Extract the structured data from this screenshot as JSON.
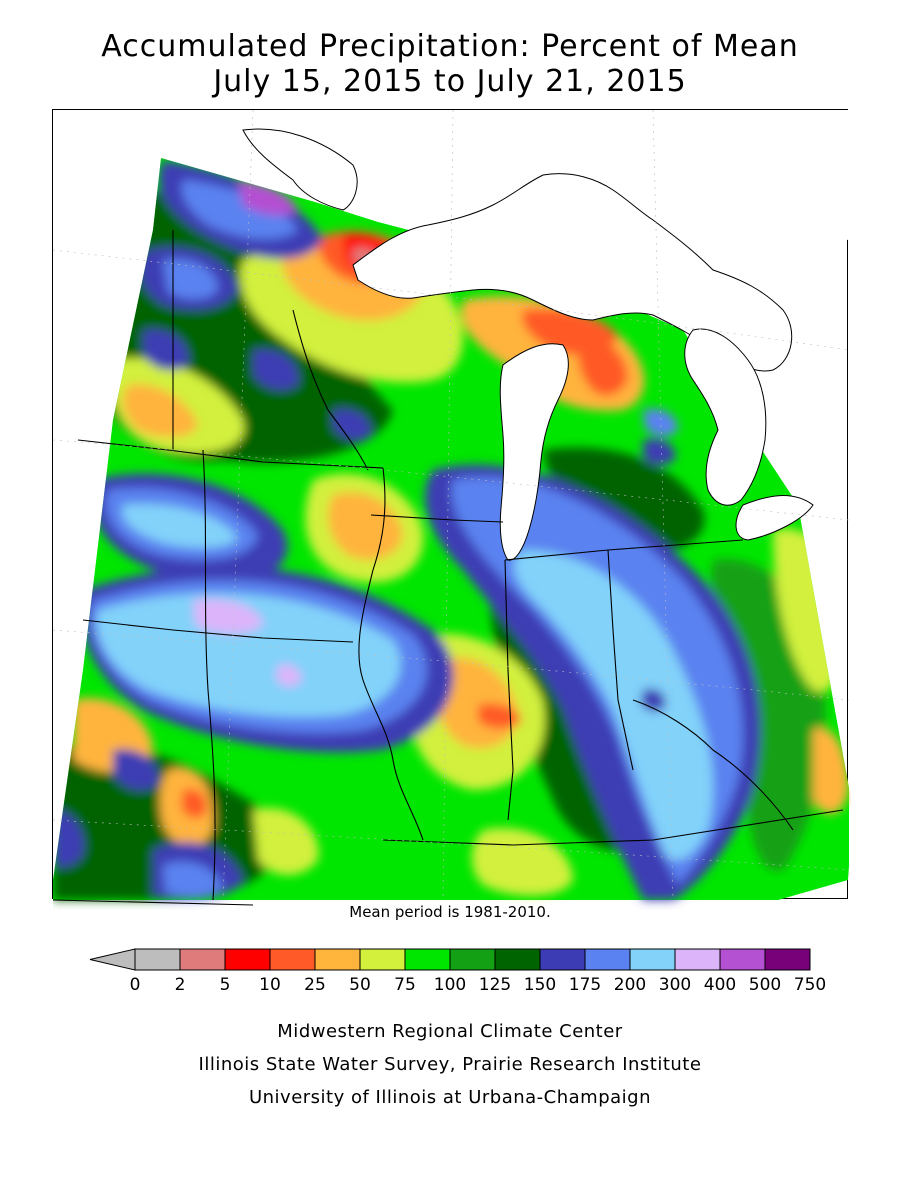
{
  "title": {
    "line1": "Accumulated Precipitation: Percent of Mean",
    "line2": "July 15, 2015 to July 21, 2015"
  },
  "mean_note": "Mean period is 1981-2010.",
  "legend": {
    "unit": "percent of mean",
    "breaks": [
      "0",
      "2",
      "5",
      "10",
      "25",
      "50",
      "75",
      "100",
      "125",
      "150",
      "175",
      "200",
      "300",
      "400",
      "500",
      "750"
    ],
    "colors": [
      "#bdbdbd",
      "#e07b7b",
      "#ff0000",
      "#ff5a28",
      "#ffb43c",
      "#d2f03c",
      "#00e600",
      "#14a014",
      "#006400",
      "#3c3cb4",
      "#5a82f0",
      "#82d2fa",
      "#dcb4fa",
      "#b450d2",
      "#780078"
    ],
    "below_min_color": "#bdbdbd"
  },
  "credits": {
    "line1": "Midwestern Regional Climate Center",
    "line2": "Illinois State Water Survey, Prairie Research Institute",
    "line3": "University of Illinois at Urbana-Champaign"
  },
  "map": {
    "background_color": "#00e600",
    "lake_color": "#ffffff"
  }
}
